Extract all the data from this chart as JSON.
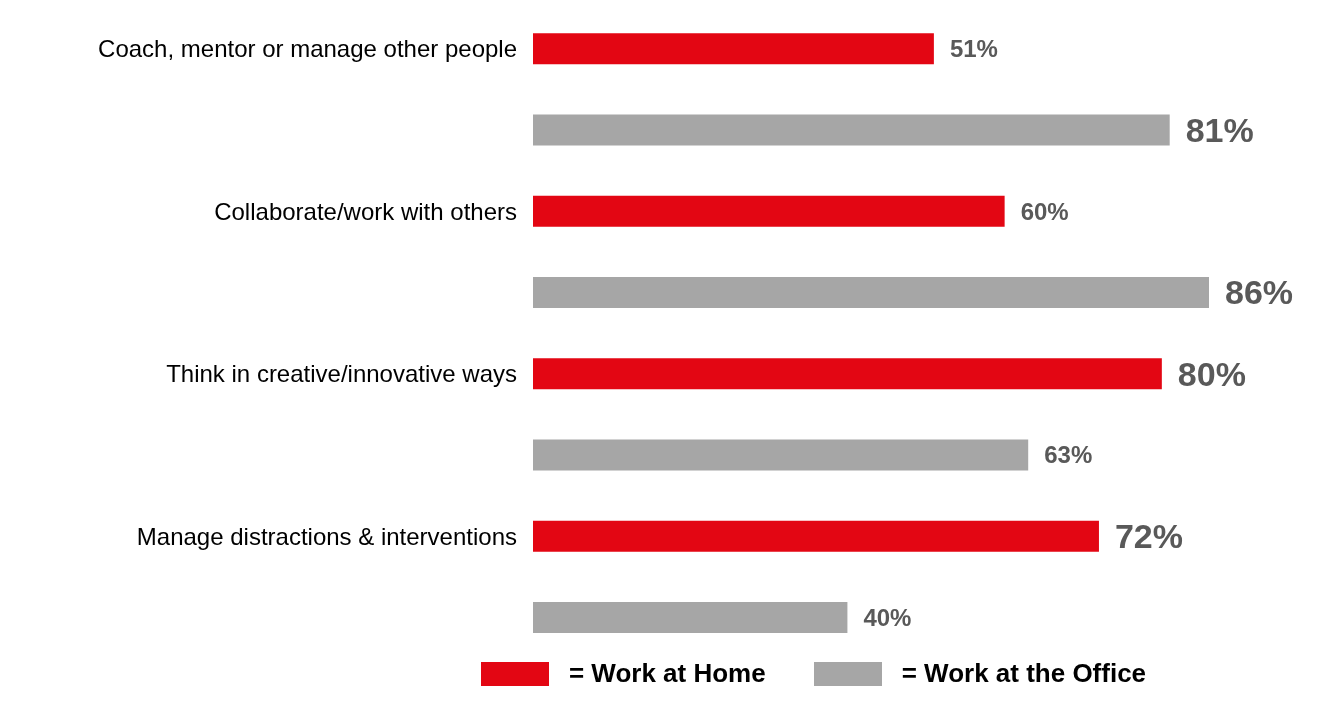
{
  "chart_data": {
    "type": "bar",
    "orientation": "horizontal",
    "categories": [
      "Coach, mentor or manage other people",
      "Collaborate/work with others",
      "Think in creative/innovative ways",
      "Manage distractions & interventions"
    ],
    "series": [
      {
        "name": "= Work at Home",
        "color": "#e30613",
        "values": [
          51,
          60,
          80,
          72
        ],
        "value_labels": [
          "51%",
          "60%",
          "80%",
          "72%"
        ]
      },
      {
        "name": "= Work at the Office",
        "color": "#a6a6a6",
        "values": [
          81,
          86,
          63,
          40
        ],
        "value_labels": [
          "81%",
          "86%",
          "63%",
          "40%"
        ]
      }
    ],
    "legend": "bottom",
    "grid": false
  }
}
